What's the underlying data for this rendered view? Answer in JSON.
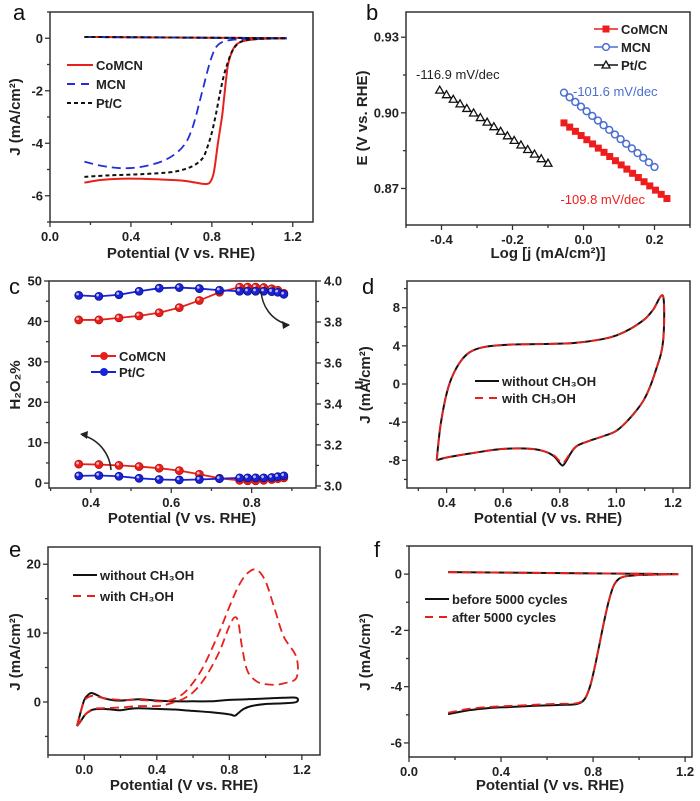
{
  "chart_data": [
    {
      "id": "a",
      "type": "line",
      "panel_label": "a",
      "xlabel": "Potential (V vs. RHE)",
      "ylabel": "J (mA/cm²)",
      "xlim": [
        0.0,
        1.3
      ],
      "ylim": [
        -7,
        1
      ],
      "xticks": [
        0.0,
        0.4,
        0.8,
        1.2
      ],
      "xtick_labels": [
        "0.0",
        "0.4",
        "0.8",
        "1.2"
      ],
      "yticks": [
        0,
        -2,
        -4,
        -6
      ],
      "ytick_labels": [
        "0",
        "-2",
        "-4",
        "-6"
      ],
      "legend_position": "upper-left",
      "series": [
        {
          "name": "CoMCN",
          "color": "#e8201c",
          "style": "solid",
          "x": [
            0.17,
            0.25,
            0.35,
            0.45,
            0.55,
            0.65,
            0.72,
            0.76,
            0.79,
            0.81,
            0.83,
            0.85,
            0.86,
            0.87,
            0.88,
            0.9,
            0.92,
            0.95,
            1.0,
            1.05,
            1.1,
            1.17
          ],
          "y": [
            -5.5,
            -5.4,
            -5.35,
            -5.35,
            -5.38,
            -5.42,
            -5.5,
            -5.55,
            -5.5,
            -5.1,
            -4.0,
            -3.0,
            -2.3,
            -1.6,
            -1.0,
            -0.5,
            -0.25,
            -0.12,
            -0.05,
            -0.02,
            -0.01,
            0.0
          ]
        },
        {
          "name": "MCN",
          "color": "#2030d8",
          "style": "dashed",
          "x": [
            0.17,
            0.25,
            0.35,
            0.45,
            0.55,
            0.62,
            0.67,
            0.7,
            0.72,
            0.74,
            0.76,
            0.78,
            0.8,
            0.82,
            0.85,
            0.9,
            1.0,
            1.17
          ],
          "y": [
            -4.7,
            -4.85,
            -4.95,
            -4.9,
            -4.7,
            -4.4,
            -4.0,
            -3.5,
            -3.0,
            -2.4,
            -1.8,
            -1.2,
            -0.7,
            -0.35,
            -0.15,
            -0.06,
            -0.02,
            0.0
          ]
        },
        {
          "name": "Pt/C",
          "color": "#111111",
          "style": "dotted",
          "x": [
            0.17,
            0.3,
            0.45,
            0.6,
            0.68,
            0.73,
            0.76,
            0.78,
            0.8,
            0.82,
            0.84,
            0.86,
            0.88,
            0.9,
            0.93,
            0.97,
            1.05,
            1.17
          ],
          "y": [
            -5.28,
            -5.22,
            -5.18,
            -5.1,
            -4.95,
            -4.75,
            -4.5,
            -4.1,
            -3.6,
            -2.9,
            -2.1,
            -1.4,
            -0.9,
            -0.5,
            -0.2,
            -0.07,
            -0.02,
            0.0
          ]
        }
      ],
      "return_sweep": {
        "x": [
          0.17,
          1.17
        ],
        "y": [
          0.05,
          0.0
        ]
      }
    },
    {
      "id": "b",
      "type": "scatter",
      "panel_label": "b",
      "xlabel": "Log [j (mA/cm²)]",
      "ylabel": "E (V vs. RHE)",
      "xlim": [
        -0.5,
        0.3
      ],
      "ylim": [
        0.8555,
        0.94
      ],
      "xticks": [
        -0.4,
        -0.2,
        0.0,
        0.2
      ],
      "xtick_labels": [
        "-0.4",
        "-0.2",
        "0.0",
        "0.2"
      ],
      "yticks": [
        0.87,
        0.9,
        0.93
      ],
      "ytick_labels": [
        "0.87",
        "0.90",
        "0.93"
      ],
      "legend_position": "upper-right",
      "series": [
        {
          "name": "CoMCN",
          "color": "#ee1c1c",
          "marker": "square-filled",
          "x_start": -0.055,
          "x_end": 0.235,
          "y_start": 0.896,
          "y_end": 0.866,
          "n_points": 19,
          "annotation": "-109.8 mV/dec"
        },
        {
          "name": "MCN",
          "color": "#4a6fd0",
          "marker": "circle-open",
          "x_start": -0.055,
          "x_end": 0.2,
          "y_start": 0.908,
          "y_end": 0.8785,
          "n_points": 17,
          "annotation": "-101.6 mV/dec"
        },
        {
          "name": "Pt/C",
          "color": "#111111",
          "marker": "triangle-open",
          "x_start": -0.405,
          "x_end": -0.1,
          "y_start": 0.909,
          "y_end": 0.88,
          "n_points": 17,
          "annotation": "-116.9 mV/dec"
        }
      ]
    },
    {
      "id": "c",
      "type": "line",
      "panel_label": "c",
      "xlabel": "Potential (V vs. RHE)",
      "ylabel": "H₂O₂%",
      "ylabel_right": "n",
      "xlim": [
        0.296,
        0.96
      ],
      "ylim": [
        -1.2,
        50
      ],
      "ylim_right": [
        2.99,
        4.0
      ],
      "xticks": [
        0.4,
        0.6,
        0.8
      ],
      "xtick_labels": [
        "0.4",
        "0.6",
        "0.8"
      ],
      "yticks": [
        0,
        10,
        20,
        30,
        40,
        50
      ],
      "ytick_labels": [
        "0",
        "10",
        "20",
        "30",
        "40",
        "50"
      ],
      "yticks_right": [
        3.0,
        3.2,
        3.4,
        3.6,
        3.8,
        4.0
      ],
      "ytick_labels_right": [
        "3.0",
        "3.2",
        "3.4",
        "3.6",
        "3.8",
        "4.0"
      ],
      "legend_position": "center-left",
      "x": [
        0.37,
        0.42,
        0.47,
        0.52,
        0.57,
        0.62,
        0.67,
        0.72,
        0.77,
        0.79,
        0.81,
        0.83,
        0.85,
        0.865,
        0.88
      ],
      "series": [
        {
          "name": "CoMCN",
          "color": "#e8201c",
          "axis": "right",
          "quantity": "n",
          "y": [
            3.81,
            3.81,
            3.82,
            3.83,
            3.845,
            3.87,
            3.905,
            3.945,
            3.97,
            3.97,
            3.97,
            3.968,
            3.962,
            3.955,
            3.94
          ]
        },
        {
          "name": "Pt/C",
          "color": "#1a22d8",
          "axis": "right",
          "quantity": "n",
          "y": [
            3.93,
            3.925,
            3.933,
            3.95,
            3.965,
            3.968,
            3.963,
            3.955,
            3.95,
            3.95,
            3.95,
            3.95,
            3.948,
            3.945,
            3.935
          ]
        },
        {
          "name": "CoMCN",
          "color": "#e8201c",
          "axis": "left",
          "quantity": "H2O2%",
          "y": [
            4.7,
            4.6,
            4.4,
            4.1,
            3.7,
            3.1,
            2.2,
            1.2,
            0.7,
            0.6,
            0.6,
            0.7,
            0.9,
            1.1,
            1.3
          ]
        },
        {
          "name": "Pt/C",
          "color": "#1a22d8",
          "axis": "left",
          "quantity": "H2O2%",
          "y": [
            1.8,
            1.9,
            1.7,
            1.2,
            0.9,
            0.8,
            0.9,
            1.1,
            1.3,
            1.3,
            1.3,
            1.3,
            1.4,
            1.6,
            1.8
          ]
        }
      ],
      "annotations": [
        {
          "type": "arrow",
          "meaning": "n curves refer to right axis",
          "direction": "right"
        },
        {
          "type": "arrow",
          "meaning": "H2O2% curves refer to left axis",
          "direction": "left"
        }
      ]
    },
    {
      "id": "d",
      "type": "line",
      "panel_label": "d",
      "xlabel": "Potential (V vs. RHE)",
      "ylabel": "J (mA/cm²)",
      "xlim": [
        0.26,
        1.26
      ],
      "ylim": [
        -10.9,
        10.8
      ],
      "xticks": [
        0.4,
        0.6,
        0.8,
        1.0,
        1.2
      ],
      "xtick_labels": [
        "0.4",
        "0.6",
        "0.8",
        "1.0",
        "1.2"
      ],
      "yticks": [
        8,
        4,
        0,
        -4,
        -8
      ],
      "ytick_labels": [
        "8",
        "4",
        "0",
        "-4",
        "-8"
      ],
      "legend_position": "center",
      "series": [
        {
          "name": "without CH₃OH",
          "color": "#111111",
          "style": "solid",
          "x": [
            0.365,
            0.37,
            0.38,
            0.4,
            0.42,
            0.45,
            0.48,
            0.52,
            0.58,
            0.65,
            0.75,
            0.85,
            0.95,
            1.0,
            1.05,
            1.1,
            1.13,
            1.165,
            1.165,
            1.14,
            1.1,
            1.05,
            1.0,
            0.95,
            0.9,
            0.86,
            0.84,
            0.82,
            0.81,
            0.8,
            0.78,
            0.75,
            0.7,
            0.6,
            0.5,
            0.4,
            0.365
          ],
          "y": [
            -8.0,
            -6.5,
            -4.0,
            -1.0,
            0.8,
            2.4,
            3.3,
            3.8,
            4.05,
            4.15,
            4.2,
            4.3,
            4.7,
            5.1,
            5.8,
            6.8,
            7.8,
            9.2,
            4.5,
            1.5,
            -1.5,
            -3.5,
            -4.9,
            -5.5,
            -6.0,
            -6.5,
            -7.2,
            -8.2,
            -8.55,
            -8.3,
            -7.6,
            -7.1,
            -6.8,
            -6.8,
            -7.2,
            -7.7,
            -8.0
          ]
        },
        {
          "name": "with CH₃OH",
          "color": "#e8201c",
          "style": "dashed",
          "x": [
            0.365,
            0.37,
            0.38,
            0.4,
            0.42,
            0.45,
            0.48,
            0.52,
            0.58,
            0.65,
            0.75,
            0.85,
            0.95,
            1.0,
            1.05,
            1.1,
            1.13,
            1.165,
            1.165,
            1.14,
            1.1,
            1.05,
            1.0,
            0.95,
            0.9,
            0.86,
            0.84,
            0.82,
            0.81,
            0.8,
            0.78,
            0.75,
            0.7,
            0.6,
            0.5,
            0.4,
            0.365
          ],
          "y": [
            -8.0,
            -6.5,
            -4.0,
            -1.0,
            0.8,
            2.4,
            3.3,
            3.8,
            4.05,
            4.15,
            4.2,
            4.3,
            4.7,
            5.1,
            5.8,
            6.8,
            7.8,
            9.2,
            4.5,
            1.5,
            -1.5,
            -3.5,
            -4.9,
            -5.5,
            -6.0,
            -6.5,
            -7.1,
            -8.0,
            -8.3,
            -8.1,
            -7.5,
            -7.1,
            -6.8,
            -6.8,
            -7.2,
            -7.7,
            -8.0
          ]
        }
      ]
    },
    {
      "id": "e",
      "type": "line",
      "panel_label": "e",
      "xlabel": "Potential (V vs. RHE)",
      "ylabel": "J (mA/cm²)",
      "xlim": [
        -0.2,
        1.3
      ],
      "ylim": [
        -7.7,
        22.5
      ],
      "xticks": [
        0.0,
        0.4,
        0.8,
        1.2
      ],
      "xtick_labels": [
        "0.0",
        "0.4",
        "0.8",
        "1.2"
      ],
      "yticks": [
        20,
        10,
        0
      ],
      "ytick_labels": [
        "20",
        "10",
        "0"
      ],
      "legend_position": "upper-left",
      "series": [
        {
          "name": "without CH₃OH",
          "color": "#111111",
          "style": "solid",
          "x": [
            -0.04,
            -0.02,
            0.0,
            0.02,
            0.04,
            0.07,
            0.1,
            0.15,
            0.2,
            0.3,
            0.4,
            0.5,
            0.6,
            0.7,
            0.8,
            0.9,
            1.0,
            1.1,
            1.17,
            1.17,
            1.1,
            1.0,
            0.92,
            0.88,
            0.85,
            0.83,
            0.8,
            0.7,
            0.6,
            0.5,
            0.4,
            0.3,
            0.25,
            0.2,
            0.15,
            0.1,
            0.05,
            0.02,
            0.0,
            -0.02,
            -0.04
          ],
          "y": [
            -3.5,
            -1.5,
            0.3,
            1.0,
            1.3,
            1.0,
            0.6,
            0.3,
            0.2,
            0.4,
            0.2,
            0.1,
            0.1,
            0.1,
            0.3,
            0.4,
            0.5,
            0.6,
            0.6,
            0.0,
            -0.2,
            -0.3,
            -0.6,
            -1.0,
            -1.6,
            -2.0,
            -1.8,
            -1.5,
            -1.3,
            -1.1,
            -1.0,
            -0.9,
            -1.0,
            -1.2,
            -1.1,
            -1.0,
            -1.1,
            -1.5,
            -2.0,
            -2.8,
            -3.5
          ]
        },
        {
          "name": "with CH₃OH",
          "color": "#e8201c",
          "style": "dashed",
          "x": [
            -0.04,
            -0.02,
            0.0,
            0.03,
            0.06,
            0.1,
            0.2,
            0.3,
            0.4,
            0.45,
            0.5,
            0.55,
            0.6,
            0.65,
            0.7,
            0.75,
            0.8,
            0.85,
            0.9,
            0.95,
            1.0,
            1.05,
            1.1,
            1.17,
            1.17,
            1.1,
            1.05,
            1.0,
            0.95,
            0.9,
            0.87,
            0.85,
            0.83,
            0.8,
            0.75,
            0.7,
            0.65,
            0.6,
            0.55,
            0.5,
            0.45,
            0.4,
            0.3,
            0.2,
            0.1,
            0.05,
            0.02,
            0.0,
            -0.04
          ],
          "y": [
            -3.5,
            -1.5,
            0.2,
            0.8,
            0.9,
            0.6,
            0.3,
            0.3,
            0.1,
            0.1,
            0.5,
            1.3,
            2.8,
            4.8,
            7.5,
            10.5,
            13.8,
            16.8,
            18.7,
            19.2,
            17.5,
            13.5,
            9.5,
            6.5,
            3.5,
            2.7,
            2.5,
            2.6,
            3.0,
            4.5,
            8.0,
            11.5,
            12.3,
            11.0,
            7.6,
            5.0,
            2.9,
            1.4,
            0.5,
            0.0,
            -0.4,
            -0.6,
            -0.6,
            -0.8,
            -0.9,
            -1.0,
            -1.5,
            -2.0,
            -3.5
          ]
        }
      ]
    },
    {
      "id": "f",
      "type": "line",
      "panel_label": "f",
      "xlabel": "Potential (V vs. RHE)",
      "ylabel": "J (mA/cm²)",
      "xlim": [
        0.0,
        1.23
      ],
      "ylim": [
        -6.5,
        1.0
      ],
      "xticks": [
        0.0,
        0.4,
        0.8,
        1.2
      ],
      "xtick_labels": [
        "0.0",
        "0.4",
        "0.8",
        "1.2"
      ],
      "yticks": [
        0,
        -2,
        -4,
        -6
      ],
      "ytick_labels": [
        "0",
        "-2",
        "-4",
        "-6"
      ],
      "legend_position": "upper-left",
      "series": [
        {
          "name": "before 5000 cycles",
          "color": "#111111",
          "style": "solid",
          "x": [
            0.17,
            0.25,
            0.35,
            0.45,
            0.55,
            0.65,
            0.72,
            0.75,
            0.77,
            0.79,
            0.81,
            0.83,
            0.85,
            0.87,
            0.89,
            0.91,
            0.93,
            0.96,
            1.0,
            1.05,
            1.1,
            1.17
          ],
          "y": [
            -4.98,
            -4.85,
            -4.76,
            -4.72,
            -4.68,
            -4.65,
            -4.63,
            -4.55,
            -4.35,
            -3.9,
            -3.2,
            -2.4,
            -1.6,
            -0.9,
            -0.4,
            -0.18,
            -0.1,
            -0.06,
            -0.03,
            -0.02,
            -0.01,
            0.0
          ]
        },
        {
          "name": "after 5000 cycles",
          "color": "#e8201c",
          "style": "dashed",
          "x": [
            0.17,
            0.25,
            0.35,
            0.45,
            0.55,
            0.65,
            0.72,
            0.75,
            0.77,
            0.79,
            0.81,
            0.83,
            0.85,
            0.87,
            0.89,
            0.91,
            0.93,
            0.96,
            1.0,
            1.05,
            1.1,
            1.17
          ],
          "y": [
            -4.93,
            -4.8,
            -4.72,
            -4.68,
            -4.64,
            -4.61,
            -4.6,
            -4.53,
            -4.35,
            -3.9,
            -3.2,
            -2.4,
            -1.6,
            -0.9,
            -0.4,
            -0.18,
            -0.1,
            -0.06,
            -0.03,
            -0.02,
            -0.01,
            0.0
          ]
        }
      ],
      "return_sweep": {
        "x": [
          0.17,
          1.17
        ],
        "y": [
          0.07,
          0.0
        ]
      }
    }
  ]
}
